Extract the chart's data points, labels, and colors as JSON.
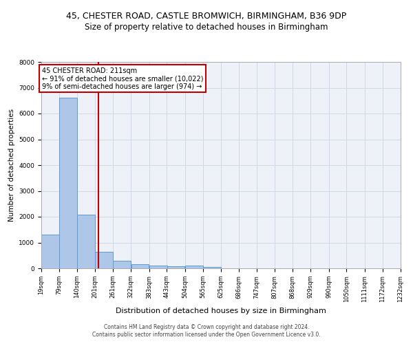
{
  "title_line1": "45, CHESTER ROAD, CASTLE BROMWICH, BIRMINGHAM, B36 9DP",
  "title_line2": "Size of property relative to detached houses in Birmingham",
  "xlabel": "Distribution of detached houses by size in Birmingham",
  "ylabel": "Number of detached properties",
  "footer_line1": "Contains HM Land Registry data © Crown copyright and database right 2024.",
  "footer_line2": "Contains public sector information licensed under the Open Government Licence v3.0.",
  "annotation_line1": "45 CHESTER ROAD: 211sqm",
  "annotation_line2": "← 91% of detached houses are smaller (10,022)",
  "annotation_line3": "9% of semi-detached houses are larger (974) →",
  "property_size": 211,
  "bar_left_edges": [
    19,
    79,
    140,
    201,
    261,
    322,
    383,
    443,
    504,
    565,
    625,
    686,
    747,
    807,
    868,
    929,
    990,
    1050,
    1111,
    1172
  ],
  "bar_heights": [
    1310,
    6620,
    2080,
    640,
    290,
    155,
    100,
    80,
    100,
    60,
    0,
    0,
    0,
    0,
    0,
    0,
    0,
    0,
    0,
    0
  ],
  "bin_width": 61,
  "bar_color": "#aec6e8",
  "bar_edge_color": "#5b9bd5",
  "vline_color": "#c00000",
  "annotation_box_color": "#c00000",
  "grid_color": "#d0d8e8",
  "background_color": "#eef2f8",
  "ylim": [
    0,
    8000
  ],
  "yticks": [
    0,
    1000,
    2000,
    3000,
    4000,
    5000,
    6000,
    7000,
    8000
  ],
  "tick_labels": [
    "19sqm",
    "79sqm",
    "140sqm",
    "201sqm",
    "261sqm",
    "322sqm",
    "383sqm",
    "443sqm",
    "504sqm",
    "565sqm",
    "625sqm",
    "686sqm",
    "747sqm",
    "807sqm",
    "868sqm",
    "929sqm",
    "990sqm",
    "1050sqm",
    "1111sqm",
    "1172sqm",
    "1232sqm"
  ],
  "title_fontsize": 9,
  "subtitle_fontsize": 8.5,
  "ylabel_fontsize": 7.5,
  "xlabel_fontsize": 8,
  "tick_fontsize": 6,
  "annotation_fontsize": 7,
  "footer_fontsize": 5.5
}
